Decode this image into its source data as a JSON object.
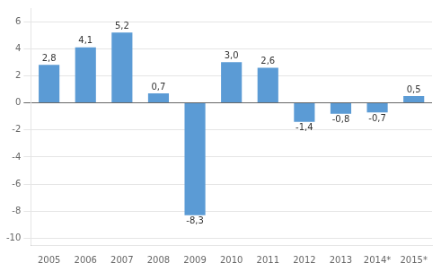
{
  "chart_data": {
    "type": "bar",
    "categories": [
      "2005",
      "2006",
      "2007",
      "2008",
      "2009",
      "2010",
      "2011",
      "2012",
      "2013",
      "2014*",
      "2015*"
    ],
    "values": [
      2.8,
      4.1,
      5.2,
      0.7,
      -8.3,
      3.0,
      2.6,
      -1.4,
      -0.8,
      -0.7,
      0.5
    ],
    "value_labels": [
      "2,8",
      "4,1",
      "5,2",
      "0,7",
      "-8,3",
      "3,0",
      "2,6",
      "-1,4",
      "-0,8",
      "-0,7",
      "0,5"
    ],
    "data_labels": true,
    "color": "#5B9BD5",
    "ylim": [
      -10.5,
      7.0
    ],
    "yticks": [
      -10,
      -8,
      -6,
      -4,
      -2,
      0,
      2,
      4,
      6
    ],
    "grid": true
  }
}
